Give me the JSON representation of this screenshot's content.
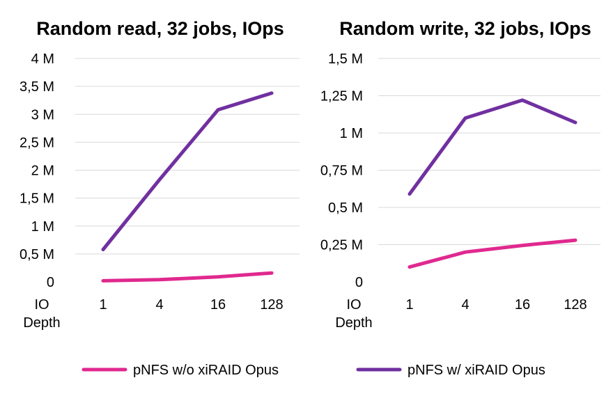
{
  "legend": [
    {
      "name": "pNFS w/o xiRAID Opus",
      "color": "#e0298f"
    },
    {
      "name": "pNFS w/ xiRAID Opus",
      "color": "#7030a0"
    }
  ],
  "chart_data": [
    {
      "type": "line",
      "title": "Random read, 32 jobs, IOps",
      "xlabel_lines": [
        "IO",
        "Depth"
      ],
      "categories": [
        "1",
        "4",
        "16",
        "128"
      ],
      "ylim": [
        0,
        4000000
      ],
      "yticks": [
        {
          "value": 0,
          "label": "0"
        },
        {
          "value": 500000,
          "label": "0,5 M"
        },
        {
          "value": 1000000,
          "label": "1 M"
        },
        {
          "value": 1500000,
          "label": "1,5 M"
        },
        {
          "value": 2000000,
          "label": "2 M"
        },
        {
          "value": 2500000,
          "label": "2,5 M"
        },
        {
          "value": 3000000,
          "label": "3 M"
        },
        {
          "value": 3500000,
          "label": "3,5 M"
        },
        {
          "value": 4000000,
          "label": "4 M"
        }
      ],
      "grid": true,
      "series": [
        {
          "name": "pNFS w/o xiRAID Opus",
          "color": "#e0298f",
          "values": [
            20000,
            40000,
            90000,
            160000
          ]
        },
        {
          "name": "pNFS w/ xiRAID Opus",
          "color": "#7030a0",
          "values": [
            580000,
            1830000,
            3080000,
            3380000
          ]
        }
      ]
    },
    {
      "type": "line",
      "title": "Random write, 32 jobs, IOps",
      "xlabel_lines": [
        "IO",
        "Depth"
      ],
      "categories": [
        "1",
        "4",
        "16",
        "128"
      ],
      "ylim": [
        0,
        1500000
      ],
      "yticks": [
        {
          "value": 0,
          "label": "0"
        },
        {
          "value": 250000,
          "label": "0,25 M"
        },
        {
          "value": 500000,
          "label": "0,5 M"
        },
        {
          "value": 750000,
          "label": "0,75 M"
        },
        {
          "value": 1000000,
          "label": "1 M"
        },
        {
          "value": 1250000,
          "label": "1,25 M"
        },
        {
          "value": 1500000,
          "label": "1,5 M"
        }
      ],
      "grid": true,
      "series": [
        {
          "name": "pNFS w/o xiRAID Opus",
          "color": "#e0298f",
          "values": [
            100000,
            200000,
            245000,
            280000
          ]
        },
        {
          "name": "pNFS w/ xiRAID Opus",
          "color": "#7030a0",
          "values": [
            590000,
            1100000,
            1220000,
            1070000
          ]
        }
      ]
    }
  ]
}
